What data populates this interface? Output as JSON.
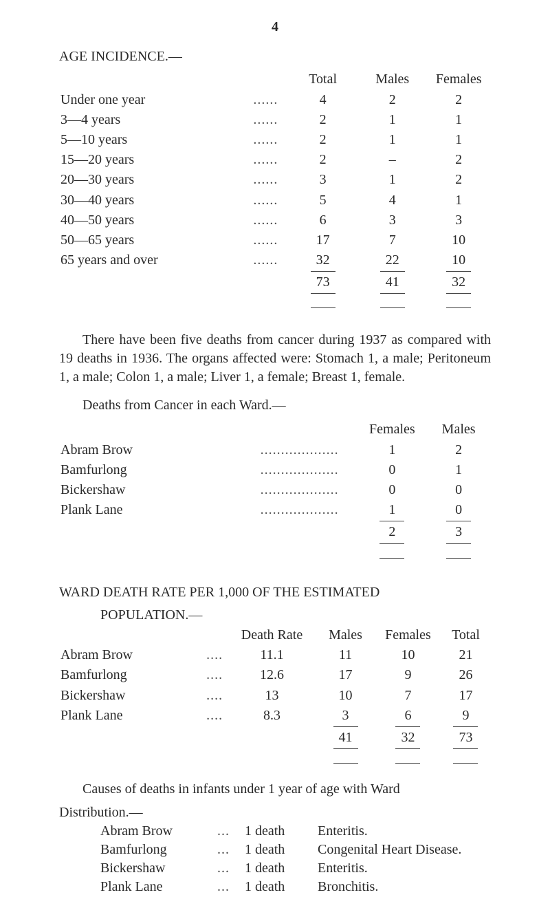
{
  "page_number": "4",
  "age_incidence": {
    "heading": "AGE INCIDENCE.—",
    "cols": [
      "Total",
      "Males",
      "Females"
    ],
    "rows": [
      {
        "label": "Under one year",
        "total": "4",
        "males": "2",
        "females": "2"
      },
      {
        "label": "3—4 years",
        "total": "2",
        "males": "1",
        "females": "1"
      },
      {
        "label": "5—10 years",
        "total": "2",
        "males": "1",
        "females": "1"
      },
      {
        "label": "15—20 years",
        "total": "2",
        "males": "–",
        "females": "2"
      },
      {
        "label": "20—30 years",
        "total": "3",
        "males": "1",
        "females": "2"
      },
      {
        "label": "30—40 years",
        "total": "5",
        "males": "4",
        "females": "1"
      },
      {
        "label": "40—50 years",
        "total": "6",
        "males": "3",
        "females": "3"
      },
      {
        "label": "50—65 years",
        "total": "17",
        "males": "7",
        "females": "10"
      },
      {
        "label": "65 years and over",
        "total": "32",
        "males": "22",
        "females": "10"
      }
    ],
    "totals": {
      "total": "73",
      "males": "41",
      "females": "32"
    }
  },
  "paragraph1": "There have been five deaths from cancer during 1937 as compared with 19 deaths in 1936. The organs affected were: Stomach 1, a male; Peritoneum 1, a male; Colon 1, a male; Liver 1, a female; Breast 1, female.",
  "deaths_cancer": {
    "heading": "Deaths from Cancer in each Ward.—",
    "cols": [
      "Females",
      "Males"
    ],
    "rows": [
      {
        "label": "Abram Brow",
        "females": "1",
        "males": "2"
      },
      {
        "label": "Bamfurlong",
        "females": "0",
        "males": "1"
      },
      {
        "label": "Bickershaw",
        "females": "0",
        "males": "0"
      },
      {
        "label": "Plank Lane",
        "females": "1",
        "males": "0"
      }
    ],
    "totals": {
      "females": "2",
      "males": "3"
    }
  },
  "ward_death_rate": {
    "heading": "WARD DEATH RATE PER 1,000 OF THE ESTIMATED",
    "sub": "POPULATION.—",
    "cols": [
      "Death Rate",
      "Males",
      "Females",
      "Total"
    ],
    "rows": [
      {
        "label": "Abram Brow",
        "dr": "11.1",
        "males": "11",
        "females": "10",
        "total": "21"
      },
      {
        "label": "Bamfurlong",
        "dr": "12.6",
        "males": "17",
        "females": "9",
        "total": "26"
      },
      {
        "label": "Bickershaw",
        "dr": "13",
        "males": "10",
        "females": "7",
        "total": "17"
      },
      {
        "label": "Plank Lane",
        "dr": "8.3",
        "males": "3",
        "females": "6",
        "total": "9"
      }
    ],
    "totals": {
      "males": "41",
      "females": "32",
      "total": "73"
    }
  },
  "causes": {
    "heading": "Causes of deaths in infants under 1 year of age with Ward",
    "sub": "Distribution.—",
    "rows": [
      {
        "ward": "Abram Brow",
        "count": "1 death",
        "what": "Enteritis."
      },
      {
        "ward": "Bamfurlong",
        "count": "1 death",
        "what": "Congenital Heart Disease."
      },
      {
        "ward": "Bickershaw",
        "count": "1 death",
        "what": "Enteritis."
      },
      {
        "ward": "Plank Lane",
        "count": "1 death",
        "what": "Bronchitis."
      }
    ]
  }
}
